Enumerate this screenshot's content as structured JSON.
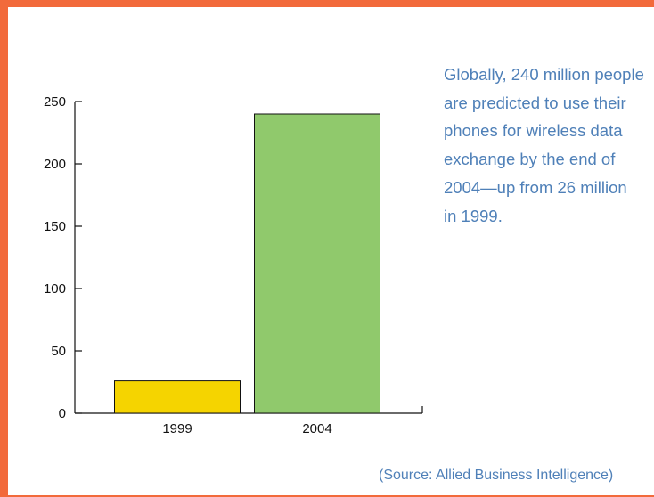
{
  "colors": {
    "frame": "#f26a3b",
    "text_accent": "#4f80b8",
    "bar_1999": "#f5d400",
    "bar_2004": "#90c96c"
  },
  "description": "Globally, 240 million people are predicted to use their phones for wireless data exchange by the end of 2004—up from 26 million in 1999.",
  "source": "(Source: Allied Business Intelligence)",
  "chart_data": {
    "type": "bar",
    "categories": [
      "1999",
      "2004"
    ],
    "values": [
      26,
      240
    ],
    "bar_colors": [
      "#f5d400",
      "#90c96c"
    ],
    "title": "",
    "xlabel": "",
    "ylabel": "",
    "ylim": [
      0,
      250
    ],
    "yticks": [
      0,
      50,
      100,
      150,
      200,
      250
    ],
    "grid": false,
    "legend": "none"
  }
}
